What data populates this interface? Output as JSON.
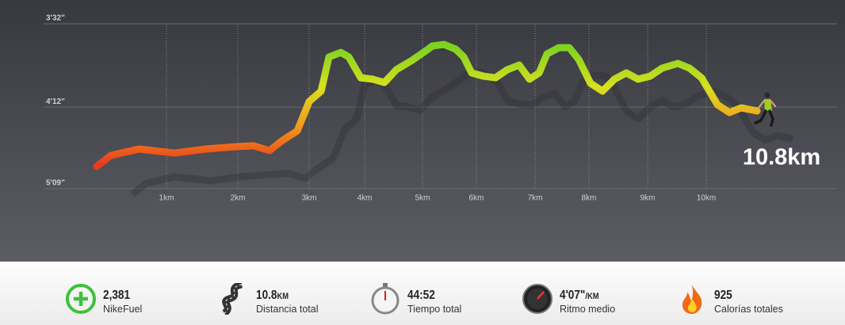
{
  "chart_data": {
    "type": "line",
    "annotation": "10.8km",
    "xlim": [
      0,
      44.87
    ],
    "xticks": [
      {
        "value": 4.74,
        "label": "1km"
      },
      {
        "value": 9.59,
        "label": "2km"
      },
      {
        "value": 14.44,
        "label": "3km"
      },
      {
        "value": 18.21,
        "label": "4km"
      },
      {
        "value": 22.14,
        "label": "5km"
      },
      {
        "value": 25.8,
        "label": "6km"
      },
      {
        "value": 29.79,
        "label": "7km"
      },
      {
        "value": 33.45,
        "label": "8km"
      },
      {
        "value": 37.44,
        "label": "9km"
      },
      {
        "value": 41.42,
        "label": "10km"
      }
    ],
    "ylim": [
      212,
      309
    ],
    "yscale": "reciprocal",
    "yticks": [
      {
        "value": 212,
        "label": "3'32\""
      },
      {
        "value": 252,
        "label": "4'12\""
      },
      {
        "value": 309,
        "label": "5'09\""
      }
    ],
    "grid": true,
    "gradient": [
      "#e83a1c",
      "#f39a1c",
      "#d8e020",
      "#7ed321"
    ],
    "x": [
      0,
      0.97,
      2.86,
      5.28,
      7.43,
      9.59,
      10.67,
      11.74,
      12.55,
      13.63,
      14.44,
      15.25,
      15.78,
      16.59,
      17.13,
      17.94,
      18.75,
      19.55,
      20.36,
      21.44,
      22.52,
      22.79,
      23.6,
      24.4,
      24.94,
      25.48,
      26.29,
      27.1,
      27.9,
      28.71,
      29.41,
      30.06,
      30.6,
      31.41,
      32.11,
      32.75,
      33.56,
      34.37,
      35.18,
      35.99,
      36.79,
      37.6,
      38.41,
      39.49,
      40.29,
      41.1,
      42.18,
      42.99,
      43.8,
      44.87
    ],
    "values": [
      291.1,
      282.9,
      278.4,
      281.2,
      278.4,
      276.7,
      276.2,
      279.5,
      273.0,
      266.3,
      248.8,
      243.2,
      226.3,
      224.2,
      226.3,
      236.3,
      237.0,
      238.7,
      232.3,
      227.8,
      222.8,
      221.4,
      220.7,
      222.8,
      226.3,
      233.9,
      235.5,
      236.3,
      232.3,
      230.1,
      237.0,
      233.9,
      224.9,
      222.1,
      222.1,
      227.4,
      239.1,
      243.2,
      237.0,
      233.9,
      237.0,
      235.5,
      231.6,
      229.3,
      231.6,
      236.3,
      250.6,
      255.1,
      252.4,
      254.2
    ]
  },
  "stats": [
    {
      "value": "2,381",
      "label": "NikeFuel"
    },
    {
      "value": "10.8",
      "unit": "KM",
      "label": "Distancia total"
    },
    {
      "value": "44:52",
      "label": "Tiempo total"
    },
    {
      "value": "4'07\"",
      "unit": "/KM",
      "label": "Ritmo medio"
    },
    {
      "value": "925",
      "label": "Calorías totales"
    }
  ]
}
